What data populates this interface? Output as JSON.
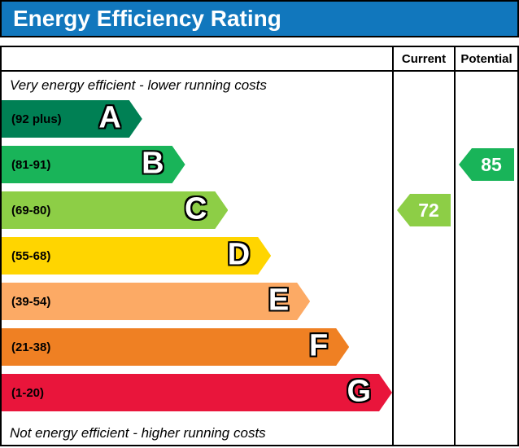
{
  "title": "Energy Efficiency Rating",
  "columns": {
    "current": "Current",
    "potential": "Potential"
  },
  "captions": {
    "top": "Very energy efficient - lower running costs",
    "bottom": "Not energy efficient - higher running costs"
  },
  "colors": {
    "title_bg": "#1177bd",
    "title_text": "#ffffff"
  },
  "chart_data": {
    "type": "bar",
    "title": "Energy Efficiency Rating",
    "orientation": "horizontal",
    "bands": [
      {
        "letter": "A",
        "range": "(92 plus)",
        "color": "#008054",
        "width_pct": 36
      },
      {
        "letter": "B",
        "range": "(81-91)",
        "color": "#19b459",
        "width_pct": 47
      },
      {
        "letter": "C",
        "range": "(69-80)",
        "color": "#8dce46",
        "width_pct": 58
      },
      {
        "letter": "D",
        "range": "(55-68)",
        "color": "#ffd500",
        "width_pct": 69
      },
      {
        "letter": "E",
        "range": "(39-54)",
        "color": "#fcaa65",
        "width_pct": 79
      },
      {
        "letter": "F",
        "range": "(21-38)",
        "color": "#ef8023",
        "width_pct": 89
      },
      {
        "letter": "G",
        "range": "(1-20)",
        "color": "#e9153b",
        "width_pct": 100
      }
    ],
    "current": {
      "value": 72,
      "band": "C",
      "color": "#8dce46"
    },
    "potential": {
      "value": 85,
      "band": "B",
      "color": "#19b459"
    }
  }
}
